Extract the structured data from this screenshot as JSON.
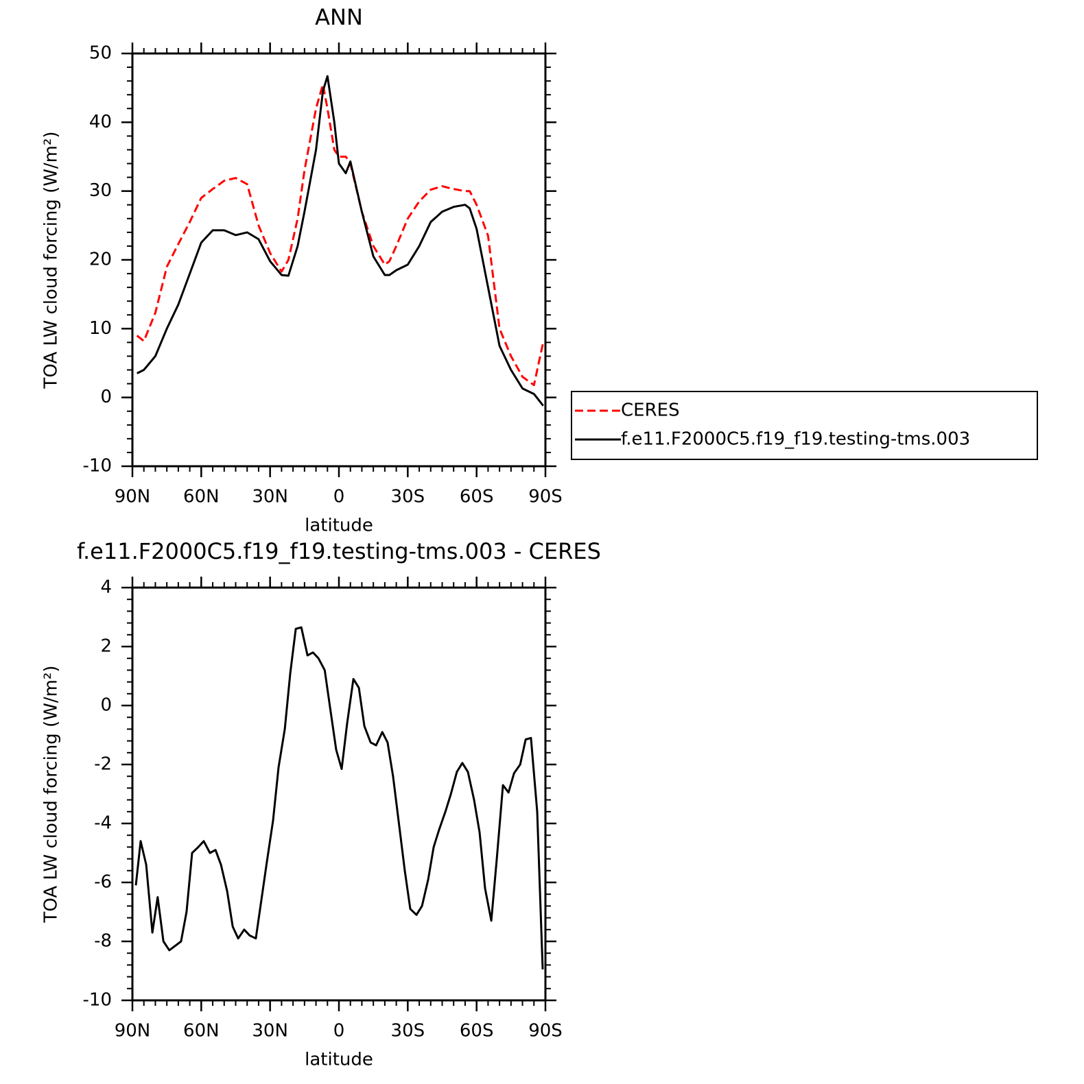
{
  "chart_data": [
    {
      "type": "line",
      "title": "ANN",
      "xlabel": "latitude",
      "ylabel": "TOA LW cloud forcing (W/m²)",
      "x": [
        88,
        85,
        80,
        75,
        70,
        65,
        60,
        55,
        50,
        45,
        40,
        35,
        30,
        25,
        22,
        18,
        15,
        10,
        7,
        5,
        2,
        0,
        -3,
        -5,
        -10,
        -15,
        -20,
        -22,
        -25,
        -30,
        -35,
        -40,
        -45,
        -50,
        -55,
        -57,
        -60,
        -65,
        -70,
        -75,
        -80,
        -85,
        -89
      ],
      "series": [
        {
          "name": "CERES",
          "color": "#ff0000",
          "style": "dashed",
          "values": [
            9,
            8.2,
            12.3,
            19,
            22.3,
            25.5,
            29,
            30.3,
            31.5,
            31.9,
            31,
            25,
            21,
            18.3,
            20,
            26,
            33,
            42,
            45.5,
            42,
            36,
            35,
            35,
            34,
            27,
            22,
            19.3,
            19.8,
            22,
            26,
            28.5,
            30.2,
            30.7,
            30.3,
            30,
            30,
            28,
            23.5,
            10,
            6,
            3,
            1.8,
            8
          ]
        },
        {
          "name": "f.e11.F2000C5.f19_f19.testing-tms.003",
          "color": "#000000",
          "style": "solid",
          "values": [
            3.5,
            4,
            6,
            10,
            13.5,
            18,
            22.5,
            24.3,
            24.3,
            23.6,
            24,
            23,
            19.8,
            17.8,
            17.7,
            22,
            27,
            36,
            44.5,
            46.7,
            40,
            34,
            32.6,
            34.3,
            27,
            20.5,
            17.8,
            17.8,
            18.5,
            19.3,
            22,
            25.5,
            27,
            27.7,
            28,
            27.5,
            24.5,
            16,
            7.5,
            4,
            1.3,
            0.5,
            -1.2
          ]
        }
      ],
      "xlim": [
        90,
        -90
      ],
      "xticks": [
        {
          "value": 90,
          "label": "90N"
        },
        {
          "value": 60,
          "label": "60N"
        },
        {
          "value": 30,
          "label": "30N"
        },
        0,
        {
          "value": -30,
          "label": "30S"
        },
        {
          "value": -60,
          "label": "60S"
        },
        {
          "value": -90,
          "label": "90S"
        }
      ],
      "ylim": [
        -10,
        50
      ],
      "yticks": [
        -10,
        0,
        10,
        20,
        30,
        40,
        50
      ],
      "legend": "right"
    },
    {
      "type": "line",
      "title": "f.e11.F2000C5.f19_f19.testing-tms.003 - CERES",
      "xlabel": "latitude",
      "ylabel": "TOA LW cloud forcing (W/m²)",
      "x": [
        88.5,
        86.4,
        84,
        81.3,
        79,
        76.5,
        73.9,
        68.8,
        66.4,
        64,
        61.3,
        58.9,
        56.2,
        53.8,
        51.4,
        48.7,
        46.3,
        43.9,
        41.3,
        38.9,
        36.2,
        31.4,
        28.7,
        26.3,
        23.6,
        21.2,
        18.8,
        16.4,
        13.7,
        11.3,
        8.9,
        6.2,
        3.8,
        1.2,
        -1.2,
        -3.6,
        -6.3,
        -8.7,
        -11.1,
        -13.8,
        -16.2,
        -18.9,
        -21.2,
        -23.6,
        -26.3,
        -28.7,
        -31.1,
        -33.8,
        -36.2,
        -38.9,
        -41.3,
        -43.7,
        -46.4,
        -48.8,
        -51.4,
        -53.8,
        -56.2,
        -58.9,
        -61.3,
        -63.7,
        -66.4,
        -68.8,
        -71.5,
        -73.9,
        -76.3,
        -79,
        -81.4,
        -83.7,
        -86.4,
        -88.8
      ],
      "series": [
        {
          "color": "#000000",
          "style": "solid",
          "values": [
            -6.1,
            -4.6,
            -5.4,
            -7.7,
            -6.5,
            -8,
            -8.3,
            -8,
            -7,
            -5,
            -4.8,
            -4.6,
            -5,
            -4.9,
            -5.4,
            -6.3,
            -7.5,
            -7.9,
            -7.6,
            -7.8,
            -7.9,
            -5.3,
            -3.9,
            -2.1,
            -0.8,
            1.1,
            2.6,
            2.65,
            1.7,
            1.8,
            1.6,
            1.2,
            -0.1,
            -1.5,
            -2.15,
            -0.6,
            0.9,
            0.6,
            -0.7,
            -1.25,
            -1.35,
            -0.9,
            -1.25,
            -2.4,
            -4.1,
            -5.6,
            -6.9,
            -7.1,
            -6.8,
            -5.9,
            -4.8,
            -4.2,
            -3.6,
            -3,
            -2.25,
            -1.95,
            -2.25,
            -3.2,
            -4.3,
            -6.2,
            -7.3,
            -5.2,
            -2.7,
            -2.95,
            -2.3,
            -2,
            -1.15,
            -1.1,
            -3.6,
            -8.95
          ]
        }
      ],
      "xlim": [
        90,
        -90
      ],
      "xticks": [
        {
          "value": 90,
          "label": "90N"
        },
        {
          "value": 60,
          "label": "60N"
        },
        {
          "value": 30,
          "label": "30N"
        },
        0,
        {
          "value": -30,
          "label": "30S"
        },
        {
          "value": -60,
          "label": "60S"
        },
        {
          "value": -90,
          "label": "90S"
        }
      ],
      "ylim": [
        -10,
        4
      ],
      "yticks": [
        -10,
        -8,
        -6,
        -4,
        -2,
        0,
        2,
        4
      ]
    }
  ]
}
